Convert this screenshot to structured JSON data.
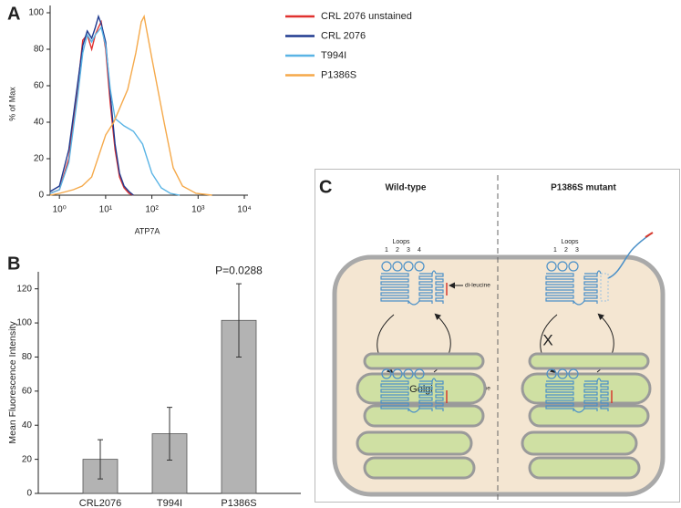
{
  "chart_data": [
    {
      "type": "line",
      "panel": "A",
      "xlabel": "ATP7A",
      "ylabel": "% of Max",
      "xscale": "log",
      "xlim": [
        0.63,
        10000
      ],
      "xticks": [
        {
          "value": 1,
          "label": "10⁰"
        },
        {
          "value": 10,
          "label": "10¹"
        },
        {
          "value": 100,
          "label": "10²"
        },
        {
          "value": 1000,
          "label": "10³"
        },
        {
          "value": 10000,
          "label": "10⁴"
        }
      ],
      "ylim": [
        0,
        100
      ],
      "yticks": [
        0,
        20,
        40,
        60,
        80,
        100
      ],
      "legend": "outside-right",
      "series": [
        {
          "name": "CRL 2076 unstained",
          "color": "#e0312f",
          "x": [
            0.63,
            1,
            1.6,
            2.5,
            3.2,
            4,
            5,
            6,
            7,
            8,
            10,
            12.6,
            16,
            20,
            25,
            32,
            40
          ],
          "values": [
            1,
            3,
            20,
            60,
            85,
            88,
            80,
            88,
            92,
            95,
            80,
            50,
            25,
            10,
            4,
            1,
            0
          ]
        },
        {
          "name": "CRL 2076",
          "color": "#1f3a8f",
          "x": [
            0.63,
            1,
            1.6,
            2.5,
            3.2,
            4,
            5,
            6,
            7,
            8,
            10,
            12.6,
            16,
            20,
            25,
            32,
            40
          ],
          "values": [
            2,
            5,
            25,
            62,
            82,
            90,
            86,
            92,
            98,
            94,
            84,
            55,
            28,
            12,
            5,
            2,
            0
          ]
        },
        {
          "name": "T994I",
          "color": "#5ab4e5",
          "x": [
            0.63,
            1,
            1.6,
            2.5,
            3.2,
            4,
            5,
            6,
            7,
            8,
            10,
            12.6,
            16,
            25,
            40,
            63,
            100,
            160,
            250,
            400
          ],
          "values": [
            1,
            3,
            18,
            55,
            78,
            88,
            84,
            88,
            90,
            92,
            82,
            58,
            42,
            38,
            35,
            28,
            12,
            4,
            1,
            0
          ]
        },
        {
          "name": "P1386S",
          "color": "#f5a94a",
          "x": [
            0.63,
            1,
            2,
            3.1,
            5,
            10,
            15,
            30,
            45,
            59,
            68,
            100,
            184,
            290,
            460,
            900,
            2000
          ],
          "values": [
            0,
            1,
            3,
            5,
            10,
            33,
            40,
            58,
            78,
            95,
            98,
            75,
            40,
            15,
            5,
            1,
            0
          ]
        }
      ]
    },
    {
      "type": "bar",
      "panel": "B",
      "ylabel": "Mean Fluorescence Intensity",
      "categories": [
        "CRL2076",
        "T994I",
        "P1386S"
      ],
      "values": [
        20,
        35,
        101.5
      ],
      "errors": [
        11.5,
        15.5,
        21.5
      ],
      "color": "#b3b3b3",
      "ylim": [
        0,
        130
      ],
      "yticks": [
        0,
        20,
        40,
        60,
        80,
        100,
        120
      ],
      "annotation": "P=0.0288"
    }
  ],
  "diagram": {
    "panel": "C",
    "wild_type": {
      "title": "Wild-type",
      "loops_label": "Loops",
      "loop_numbers": [
        "1",
        "2",
        "3",
        "4"
      ],
      "motif_labels": [
        "di-leucine",
        "di-leucine"
      ],
      "organelle": "Golgi"
    },
    "mutant": {
      "title": "P1386S mutant",
      "loops_label": "Loops",
      "loop_numbers": [
        "1",
        "2",
        "3"
      ],
      "blocked": "X"
    }
  }
}
